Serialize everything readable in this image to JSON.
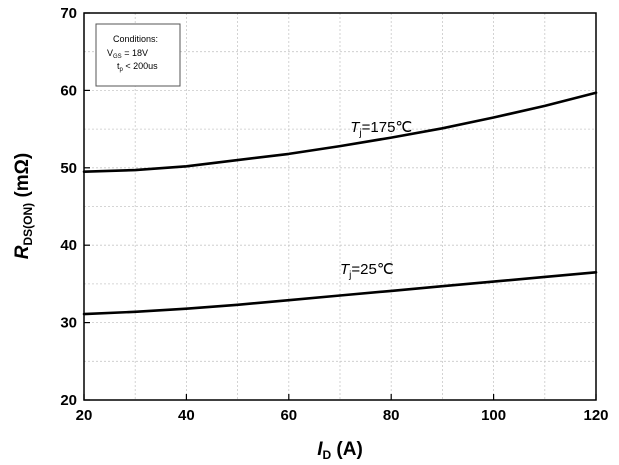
{
  "chart_data": {
    "type": "line",
    "xlabel": {
      "main": "I",
      "sub": "D",
      "unit": " (A)"
    },
    "ylabel": {
      "main": "R",
      "sub": "DS(ON)",
      "unit": " (mΩ)"
    },
    "xlim": [
      20,
      120
    ],
    "ylim": [
      20,
      70
    ],
    "xticks": [
      20,
      40,
      60,
      80,
      100,
      120
    ],
    "yticks": [
      20,
      30,
      40,
      50,
      60,
      70
    ],
    "grid": true,
    "conditions": {
      "title": "Conditions:",
      "vgs": {
        "main": "V",
        "sub": "GS",
        "rest": " =  18V"
      },
      "tp": {
        "main": "t",
        "sub": "p",
        "rest": "  < 200us"
      }
    },
    "series": [
      {
        "label": {
          "main": "T",
          "sub": "j",
          "rest": "=175℃"
        },
        "label_at": [
          72,
          54.6
        ],
        "x": [
          20,
          30,
          40,
          50,
          60,
          70,
          80,
          90,
          100,
          110,
          120
        ],
        "y": [
          49.5,
          49.7,
          50.2,
          51.0,
          51.8,
          52.8,
          53.9,
          55.1,
          56.5,
          58.0,
          59.7
        ]
      },
      {
        "label": {
          "main": "T",
          "sub": "j",
          "rest": "=25℃"
        },
        "label_at": [
          70,
          36.3
        ],
        "x": [
          20,
          30,
          40,
          50,
          60,
          70,
          80,
          90,
          100,
          110,
          120
        ],
        "y": [
          31.1,
          31.4,
          31.8,
          32.3,
          32.9,
          33.5,
          34.1,
          34.7,
          35.3,
          35.9,
          36.5
        ]
      }
    ]
  }
}
